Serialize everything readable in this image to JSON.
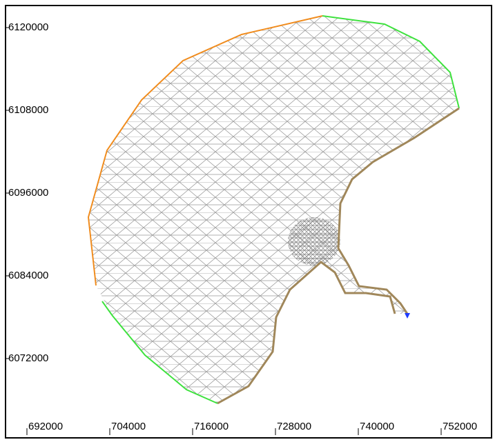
{
  "chart_data": {
    "type": "mesh",
    "xlim": [
      688900,
      759300
    ],
    "ylim": [
      6060500,
      6123200
    ],
    "xticks": [
      692000,
      704000,
      716000,
      728000,
      740000,
      752000
    ],
    "yticks": [
      6072000,
      6084000,
      6096000,
      6108000,
      6120000
    ]
  }
}
